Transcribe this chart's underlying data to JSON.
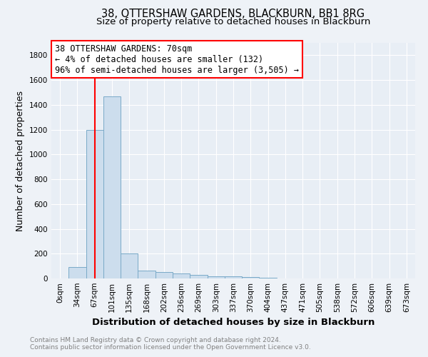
{
  "title1": "38, OTTERSHAW GARDENS, BLACKBURN, BB1 8RG",
  "title2": "Size of property relative to detached houses in Blackburn",
  "xlabel": "Distribution of detached houses by size in Blackburn",
  "ylabel": "Number of detached properties",
  "bar_labels": [
    "0sqm",
    "34sqm",
    "67sqm",
    "101sqm",
    "135sqm",
    "168sqm",
    "202sqm",
    "236sqm",
    "269sqm",
    "303sqm",
    "337sqm",
    "370sqm",
    "404sqm",
    "437sqm",
    "471sqm",
    "505sqm",
    "538sqm",
    "572sqm",
    "606sqm",
    "639sqm",
    "673sqm"
  ],
  "bar_values": [
    0,
    90,
    1200,
    1470,
    200,
    65,
    50,
    38,
    28,
    20,
    15,
    10,
    5,
    0,
    0,
    0,
    0,
    0,
    0,
    0,
    0
  ],
  "bar_color": "#ccdded",
  "bar_edge_color": "#7aaac8",
  "red_line_index": 2,
  "annotation_line1": "38 OTTERSHAW GARDENS: 70sqm",
  "annotation_line2": "← 4% of detached houses are smaller (132)",
  "annotation_line3": "96% of semi-detached houses are larger (3,505) →",
  "ylim": [
    0,
    1900
  ],
  "yticks": [
    0,
    200,
    400,
    600,
    800,
    1000,
    1200,
    1400,
    1600,
    1800
  ],
  "footer_line1": "Contains HM Land Registry data © Crown copyright and database right 2024.",
  "footer_line2": "Contains public sector information licensed under the Open Government Licence v3.0.",
  "bg_color": "#eef2f7",
  "plot_bg_color": "#e8eef5",
  "title1_fontsize": 10.5,
  "title2_fontsize": 9.5,
  "tick_fontsize": 7.5,
  "ylabel_fontsize": 9,
  "xlabel_fontsize": 9.5,
  "footer_fontsize": 6.5,
  "annot_fontsize": 8.5
}
